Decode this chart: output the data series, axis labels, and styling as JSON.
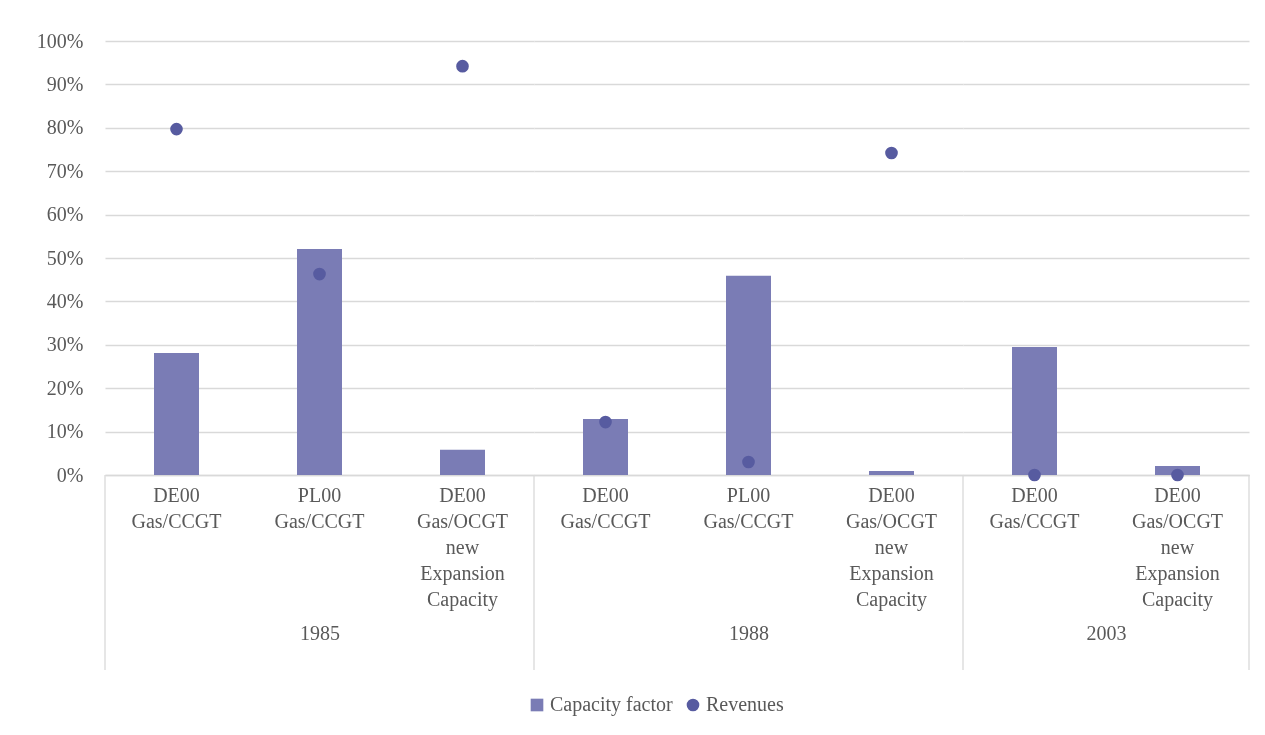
{
  "chart_data": [
    {
      "type": "bar",
      "xlabel": "1985",
      "categories": [
        "DE00 Gas/CCGT",
        "PL00 Gas/CCGT",
        "DE00 Gas/OCGT new Expansion Capacity"
      ],
      "series": [
        {
          "name": "Capacity factor",
          "color": "#7a7cb5",
          "values": [
            28.1,
            52.1,
            5.8
          ]
        },
        {
          "name": "Revenues",
          "type": "scatter",
          "color": "#575ba0",
          "values": [
            79.7,
            46.3,
            94.2
          ]
        }
      ],
      "ylim": [
        0,
        100
      ],
      "yticks": [
        {
          "value": 0,
          "label": "0%"
        },
        {
          "value": 10,
          "label": "10%"
        },
        {
          "value": 20,
          "label": "20%"
        },
        {
          "value": 30,
          "label": "30%"
        },
        {
          "value": 40,
          "label": "40%"
        },
        {
          "value": 50,
          "label": "50%"
        },
        {
          "value": 60,
          "label": "60%"
        },
        {
          "value": 70,
          "label": "70%"
        },
        {
          "value": 80,
          "label": "80%"
        },
        {
          "value": 90,
          "label": "90%"
        },
        {
          "value": 100,
          "label": "100%"
        }
      ],
      "grid": "y",
      "legend": "bottom",
      "marker": "circle"
    },
    {
      "type": "bar",
      "xlabel": "1988",
      "categories": [
        "DE00 Gas/CCGT",
        "PL00 Gas/CCGT",
        "DE00 Gas/OCGT new Expansion Capacity"
      ],
      "series": [
        {
          "color": "#7a7cb5",
          "values": [
            12.9,
            45.9,
            0.9
          ]
        },
        {
          "type": "scatter",
          "color": "#575ba0",
          "values": [
            12.2,
            3.0,
            74.2
          ]
        }
      ],
      "ylim": [
        0,
        100
      ],
      "yticks": [
        0,
        10,
        20,
        30,
        40,
        50,
        60,
        70,
        80,
        90,
        100
      ],
      "grid": "y",
      "marker": "circle",
      "tick_labels": "x"
    },
    {
      "type": "bar",
      "xlabel": "2003",
      "categories": [
        "DE00 Gas/CCGT",
        "DE00 Gas/OCGT new Expansion Capacity"
      ],
      "series": [
        {
          "color": "#7a7cb5",
          "values": [
            29.5,
            2.1
          ]
        },
        {
          "type": "scatter",
          "color": "#575ba0",
          "values": [
            0,
            0
          ]
        }
      ],
      "ylim": [
        0,
        100
      ],
      "yticks": [
        0,
        10,
        20,
        30,
        40,
        50,
        60,
        70,
        80,
        90,
        100
      ],
      "grid": "y",
      "marker": "circle",
      "tick_labels": "x"
    }
  ]
}
